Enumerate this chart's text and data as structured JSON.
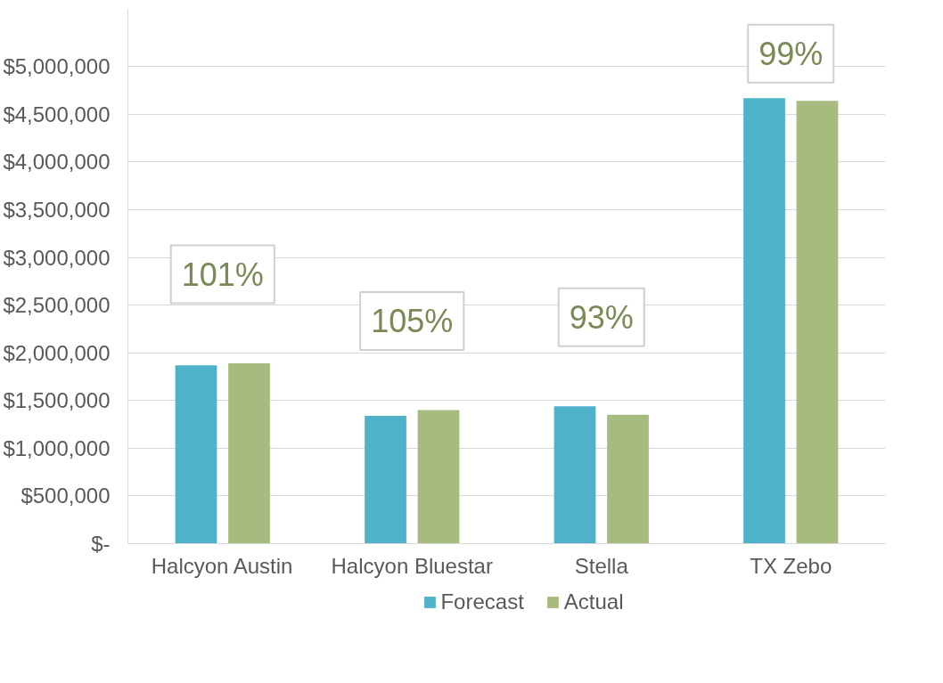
{
  "chart_data": {
    "type": "bar",
    "categories": [
      "Halcyon Austin",
      "Halcyon Bluestar",
      "Stella",
      "TX Zebo"
    ],
    "series": [
      {
        "name": "Forecast",
        "color": "#4eb3c8",
        "values": [
          1870000,
          1340000,
          1440000,
          4670000
        ]
      },
      {
        "name": "Actual",
        "color": "#a8bb7e",
        "values": [
          1890000,
          1400000,
          1350000,
          4640000
        ]
      }
    ],
    "ylim": [
      0,
      5600000
    ],
    "yticks": [
      {
        "value": 0,
        "label": "$-"
      },
      {
        "value": 500000,
        "label": "$500,000"
      },
      {
        "value": 1000000,
        "label": "$1,000,000"
      },
      {
        "value": 1500000,
        "label": "$1,500,000"
      },
      {
        "value": 2000000,
        "label": "$2,000,000"
      },
      {
        "value": 2500000,
        "label": "$2,500,000"
      },
      {
        "value": 3000000,
        "label": "$3,000,000"
      },
      {
        "value": 3500000,
        "label": "$3,500,000"
      },
      {
        "value": 4000000,
        "label": "$4,000,000"
      },
      {
        "value": 4500000,
        "label": "$4,500,000"
      },
      {
        "value": 5000000,
        "label": "$5,000,000"
      }
    ],
    "annotations": [
      "101%",
      "105%",
      "93%",
      "99%"
    ],
    "grid": "y",
    "legend": "bottom"
  }
}
